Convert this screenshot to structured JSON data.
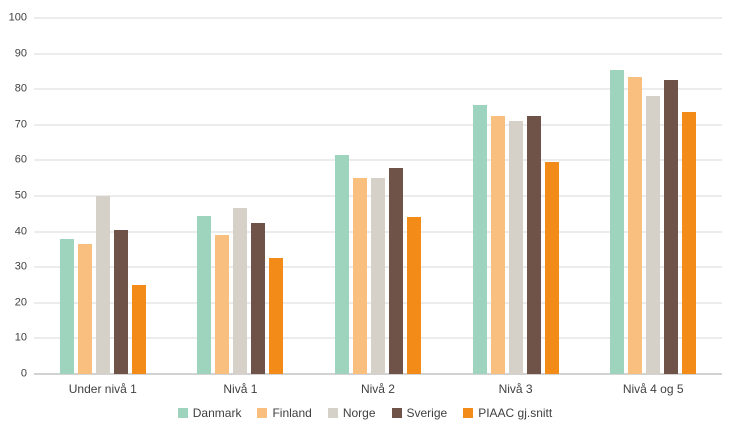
{
  "chart_data": {
    "type": "bar",
    "title": "",
    "xlabel": "",
    "ylabel": "",
    "ylim": [
      0,
      100
    ],
    "ytick_step": 10,
    "grid": true,
    "legend_position": "bottom",
    "categories": [
      "Under nivå 1",
      "Nivå 1",
      "Nivå 2",
      "Nivå 3",
      "Nivå 4 og 5"
    ],
    "series": [
      {
        "name": "Danmark",
        "color": "#9ed3be",
        "values": [
          38,
          44.5,
          61.5,
          75.5,
          85.5
        ]
      },
      {
        "name": "Finland",
        "color": "#f9bf7e",
        "values": [
          36.5,
          39,
          55,
          72.5,
          83.5
        ]
      },
      {
        "name": "Norge",
        "color": "#d5d0c8",
        "values": [
          50,
          46.5,
          55,
          71,
          78
        ]
      },
      {
        "name": "Sverige",
        "color": "#6f5348",
        "values": [
          40.5,
          42.5,
          58,
          72.5,
          82.5
        ]
      },
      {
        "name": "PIAAC gj.snitt",
        "color": "#f28b17",
        "values": [
          25,
          32.5,
          44,
          59.5,
          73.5
        ]
      }
    ],
    "colors": {
      "gridline": "#d9d9d9",
      "axis_line": "#a6a6a6",
      "text": "#404040",
      "background": "#ffffff"
    }
  }
}
